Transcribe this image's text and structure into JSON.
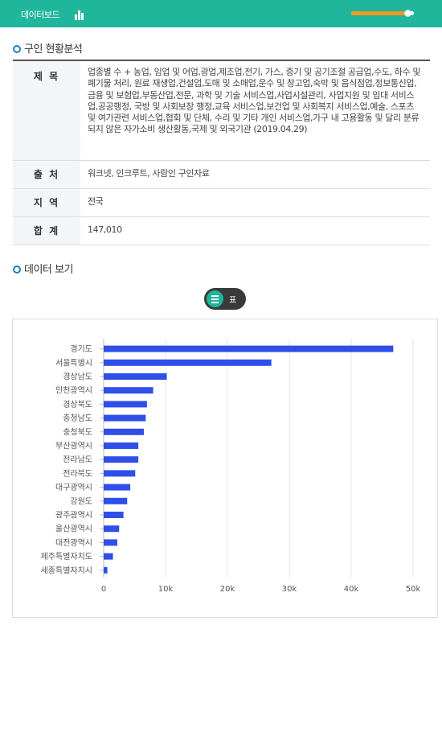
{
  "header": {
    "title": "데이터보드",
    "icon": "bar-chart-icon",
    "slider_value": 0.9
  },
  "section1": {
    "title": "구인 현황분석"
  },
  "info": [
    {
      "label": "제 목",
      "value": "업종별 수 + 농업, 임업 및 어업,광업,제조업,전기, 가스, 증기 및 공기조절 공급업,수도, 하수 및 폐기물 처리, 원료 재생업,건설업,도매 및 소매업,운수 및 창고업,숙박 및 음식점업,정보통신업,금융 및 보험업,부동산업,전문, 과학 및 기술 서비스업,사업시설관리, 사업지원 및 임대 서비스업,공공행정, 국방 및 사회보장 행정,교육 서비스업,보건업 및 사회복지 서비스업,예술, 스포츠 및 여가관련 서비스업,협회 및 단체, 수리 및 기타 개인 서비스업,가구 내 고용활동 및 달리 분류되지 않은 자가소비 생산활동,국제 및 외국기관 (2019.04.29)"
    },
    {
      "label": "출 처",
      "value": "워크넷, 인크루트, 사람인 구인자료"
    },
    {
      "label": "지 역",
      "value": "전국"
    },
    {
      "label": "합 계",
      "value": "147,010"
    }
  ],
  "section2": {
    "title": "데이터 보기"
  },
  "view_toggle": {
    "label": "표",
    "active_icon": "list-icon"
  },
  "colors": {
    "accent": "#1fb69b",
    "bar": "#2f4fe8",
    "slider_fill": "#f29a1f",
    "bullet": "#1e7fc8"
  },
  "chart_data": {
    "type": "bar",
    "orientation": "horizontal",
    "categories": [
      "경기도",
      "서울특별시",
      "경상남도",
      "인천광역시",
      "경상북도",
      "충청남도",
      "충청북도",
      "부산광역시",
      "전라남도",
      "전라북도",
      "대구광역시",
      "강원도",
      "광주광역시",
      "울산광역시",
      "대전광역시",
      "제주특별자치도",
      "세종특별자치시"
    ],
    "values": [
      46800,
      27100,
      10200,
      8000,
      7000,
      6800,
      6500,
      5600,
      5600,
      5100,
      4300,
      3800,
      3200,
      2500,
      2200,
      1500,
      600
    ],
    "xlim": [
      0,
      50000
    ],
    "xticks": [
      "0",
      "10k",
      "20k",
      "30k",
      "40k",
      "50k"
    ],
    "grid": true
  }
}
